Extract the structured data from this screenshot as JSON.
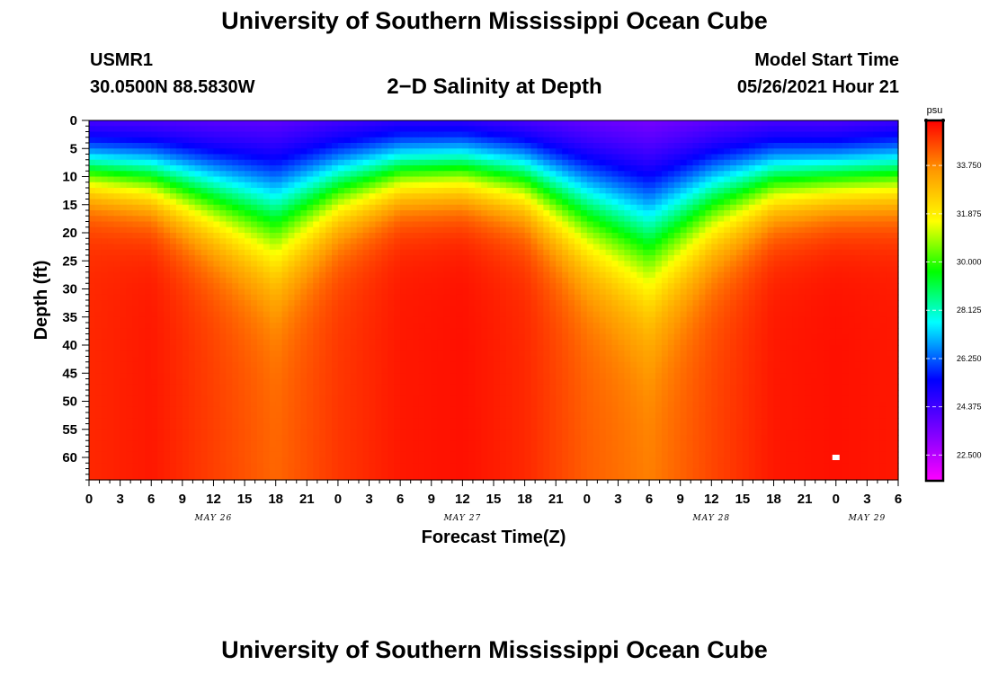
{
  "header": {
    "title": "University of Southern Mississippi Ocean Cube",
    "station_id": "USMR1",
    "coordinates": "30.0500N  88.5830W",
    "subtitle": "2−D Salinity at Depth",
    "model_start_label": "Model Start Time",
    "model_start_value": "05/26/2021 Hour 21"
  },
  "footer": {
    "title": "University of Southern Mississippi Ocean Cube"
  },
  "colors": {
    "text": "#000000",
    "marker": "#ffffff"
  },
  "chart_data": {
    "type": "heatmap",
    "title": "2−D Salinity at Depth",
    "xlabel": "Forecast Time(Z)",
    "ylabel": "Depth (ft)",
    "x_ticks": [
      "0",
      "3",
      "6",
      "9",
      "12",
      "15",
      "18",
      "21",
      "0",
      "3",
      "6",
      "9",
      "12",
      "15",
      "18",
      "21",
      "0",
      "3",
      "6",
      "9",
      "12",
      "15",
      "18",
      "21",
      "0",
      "3",
      "6"
    ],
    "x_day_labels": [
      "MAY 26",
      "MAY 27",
      "MAY 28",
      "MAY 29"
    ],
    "x_range_hours": [
      0,
      78
    ],
    "y_ticks": [
      0,
      5,
      10,
      15,
      20,
      25,
      30,
      35,
      40,
      45,
      50,
      55,
      60
    ],
    "y_range": [
      0,
      64
    ],
    "y_inverted": true,
    "colorbar": {
      "unit": "psu",
      "labels": [
        33.75,
        31.875,
        30.0,
        28.125,
        26.25,
        24.375,
        22.5
      ],
      "range": [
        21.5,
        35.5
      ]
    },
    "profile_columns": [
      {
        "hour": 0,
        "surface": 23.4,
        "bottom": 35.0,
        "mid_depth": 8.5,
        "thickness": 3.5
      },
      {
        "hour": 6,
        "surface": 23.2,
        "bottom": 35.2,
        "mid_depth": 9.5,
        "thickness": 4.0
      },
      {
        "hour": 12,
        "surface": 22.9,
        "bottom": 34.7,
        "mid_depth": 12.5,
        "thickness": 5.5
      },
      {
        "hour": 18,
        "surface": 22.8,
        "bottom": 34.2,
        "mid_depth": 15.5,
        "thickness": 7.0
      },
      {
        "hour": 24,
        "surface": 23.2,
        "bottom": 34.8,
        "mid_depth": 11.0,
        "thickness": 5.0
      },
      {
        "hour": 30,
        "surface": 23.5,
        "bottom": 35.2,
        "mid_depth": 8.5,
        "thickness": 4.0
      },
      {
        "hour": 36,
        "surface": 23.3,
        "bottom": 35.3,
        "mid_depth": 8.0,
        "thickness": 4.0
      },
      {
        "hour": 42,
        "surface": 23.0,
        "bottom": 35.0,
        "mid_depth": 9.5,
        "thickness": 4.5
      },
      {
        "hour": 48,
        "surface": 22.7,
        "bottom": 34.3,
        "mid_depth": 14.5,
        "thickness": 6.5
      },
      {
        "hour": 54,
        "surface": 22.5,
        "bottom": 33.9,
        "mid_depth": 18.5,
        "thickness": 8.0
      },
      {
        "hour": 60,
        "surface": 22.7,
        "bottom": 34.6,
        "mid_depth": 13.0,
        "thickness": 6.0
      },
      {
        "hour": 66,
        "surface": 23.1,
        "bottom": 35.2,
        "mid_depth": 10.0,
        "thickness": 4.5
      },
      {
        "hour": 72,
        "surface": 23.2,
        "bottom": 35.3,
        "mid_depth": 9.5,
        "thickness": 4.0
      },
      {
        "hour": 78,
        "surface": 23.4,
        "bottom": 35.2,
        "mid_depth": 9.0,
        "thickness": 4.0
      }
    ],
    "marker": {
      "hour": 72,
      "depth": 60
    }
  }
}
